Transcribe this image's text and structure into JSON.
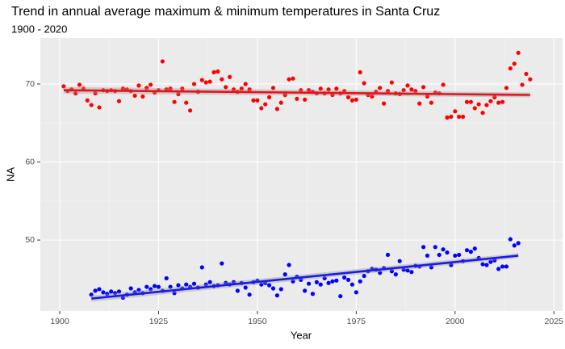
{
  "chart_data": {
    "type": "scatter",
    "title": "Trend in annual average maximum & minimum temperatures in Santa Cruz",
    "subtitle": "1900 - 2020",
    "x_label": "Year",
    "y_label": "NA",
    "xlim": [
      1895.1,
      2027.2
    ],
    "ylim": [
      40.9,
      75.9
    ],
    "xticks": [
      1900,
      1925,
      1950,
      1975,
      2000,
      2025
    ],
    "yticks": [
      50,
      60,
      70
    ],
    "grid": true,
    "x": [
      1901,
      1902,
      1903,
      1904,
      1905,
      1906,
      1907,
      1908,
      1909,
      1910,
      1911,
      1912,
      1913,
      1914,
      1915,
      1916,
      1917,
      1918,
      1919,
      1920,
      1921,
      1922,
      1923,
      1924,
      1925,
      1926,
      1927,
      1928,
      1929,
      1930,
      1931,
      1932,
      1933,
      1934,
      1935,
      1936,
      1937,
      1938,
      1939,
      1940,
      1941,
      1942,
      1943,
      1944,
      1945,
      1946,
      1947,
      1948,
      1949,
      1950,
      1951,
      1952,
      1953,
      1954,
      1955,
      1956,
      1957,
      1958,
      1959,
      1960,
      1961,
      1962,
      1963,
      1964,
      1965,
      1966,
      1967,
      1968,
      1969,
      1970,
      1971,
      1972,
      1973,
      1974,
      1975,
      1976,
      1977,
      1978,
      1979,
      1980,
      1981,
      1982,
      1983,
      1984,
      1985,
      1986,
      1987,
      1988,
      1989,
      1990,
      1991,
      1992,
      1993,
      1994,
      1995,
      1996,
      1997,
      1998,
      1999,
      2000,
      2001,
      2002,
      2003,
      2004,
      2005,
      2006,
      2007,
      2008,
      2009,
      2010,
      2011,
      2012,
      2013,
      2014,
      2015,
      2016,
      2017,
      2018,
      2019
    ],
    "series": [
      {
        "color": "#ff0000",
        "trend_color": "#e8121c",
        "values": [
          69.7,
          69.1,
          69.3,
          68.8,
          69.9,
          69.4,
          67.9,
          67.3,
          68.8,
          67.0,
          69.2,
          69.1,
          69.2,
          69.1,
          67.8,
          69.4,
          69.3,
          69.1,
          68.5,
          69.8,
          68.4,
          69.5,
          69.9,
          68.9,
          69.2,
          72.9,
          69.3,
          69.4,
          67.7,
          68.7,
          69.4,
          67.6,
          66.6,
          70.0,
          69.0,
          70.5,
          70.2,
          70.3,
          71.5,
          71.6,
          70.6,
          69.6,
          70.9,
          69.3,
          69.0,
          69.4,
          70.0,
          69.3,
          67.9,
          67.9,
          66.9,
          67.4,
          68.3,
          69.5,
          66.8,
          67.6,
          68.6,
          70.6,
          70.7,
          68.1,
          69.2,
          68.0,
          69.2,
          69.0,
          68.8,
          69.4,
          68.8,
          69.3,
          68.6,
          69.4,
          68.8,
          69.1,
          68.3,
          67.9,
          68.0,
          71.5,
          70.1,
          68.6,
          68.4,
          69.0,
          69.5,
          67.5,
          69.1,
          70.2,
          68.8,
          68.7,
          69.2,
          69.8,
          69.3,
          69.1,
          67.5,
          69.6,
          68.4,
          67.6,
          68.9,
          68.8,
          69.9,
          65.7,
          65.8,
          66.5,
          65.8,
          65.8,
          67.7,
          67.7,
          66.9,
          67.4,
          66.3,
          67.3,
          67.8,
          68.3,
          67.6,
          67.7,
          69.5,
          72.0,
          72.6,
          74.0,
          69.9,
          71.3,
          70.6
        ],
        "trend_x": [
          1901,
          2019
        ],
        "trend_values": [
          69.2,
          68.6
        ]
      },
      {
        "color": "#0000ff",
        "trend_color": "#1a1aeb",
        "values": [
          null,
          null,
          null,
          null,
          null,
          null,
          null,
          43.0,
          43.5,
          43.7,
          43.3,
          43.1,
          43.4,
          43.2,
          43.4,
          42.6,
          43.0,
          43.8,
          43.3,
          43.6,
          43.2,
          44.0,
          43.7,
          44.1,
          44.0,
          43.5,
          45.1,
          44.0,
          43.2,
          44.2,
          43.8,
          44.3,
          44.0,
          44.4,
          43.9,
          46.5,
          44.3,
          44.6,
          44.1,
          44.2,
          47.0,
          44.5,
          44.3,
          44.6,
          43.5,
          44.5,
          43.9,
          43.0,
          44.6,
          44.8,
          44.3,
          44.5,
          44.2,
          43.8,
          42.9,
          43.7,
          45.6,
          46.8,
          44.7,
          45.3,
          44.9,
          43.5,
          44.4,
          43.1,
          44.6,
          44.3,
          45.1,
          44.5,
          44.7,
          44.8,
          42.8,
          45.2,
          44.9,
          44.3,
          43.3,
          44.7,
          45.4,
          46.0,
          46.3,
          46.2,
          45.8,
          46.4,
          48.1,
          46.0,
          45.6,
          47.3,
          46.2,
          46.1,
          45.9,
          46.7,
          46.6,
          49.1,
          48.0,
          46.5,
          49.1,
          48.1,
          48.8,
          48.4,
          46.8,
          48.0,
          48.1,
          47.3,
          48.7,
          48.5,
          48.9,
          47.7,
          46.9,
          46.8,
          47.2,
          47.4,
          46.3,
          46.6,
          46.6,
          50.1,
          49.3,
          49.6,
          null,
          null,
          null
        ],
        "trend_x": [
          1908,
          2016
        ],
        "trend_values": [
          42.5,
          48.0
        ]
      }
    ]
  }
}
